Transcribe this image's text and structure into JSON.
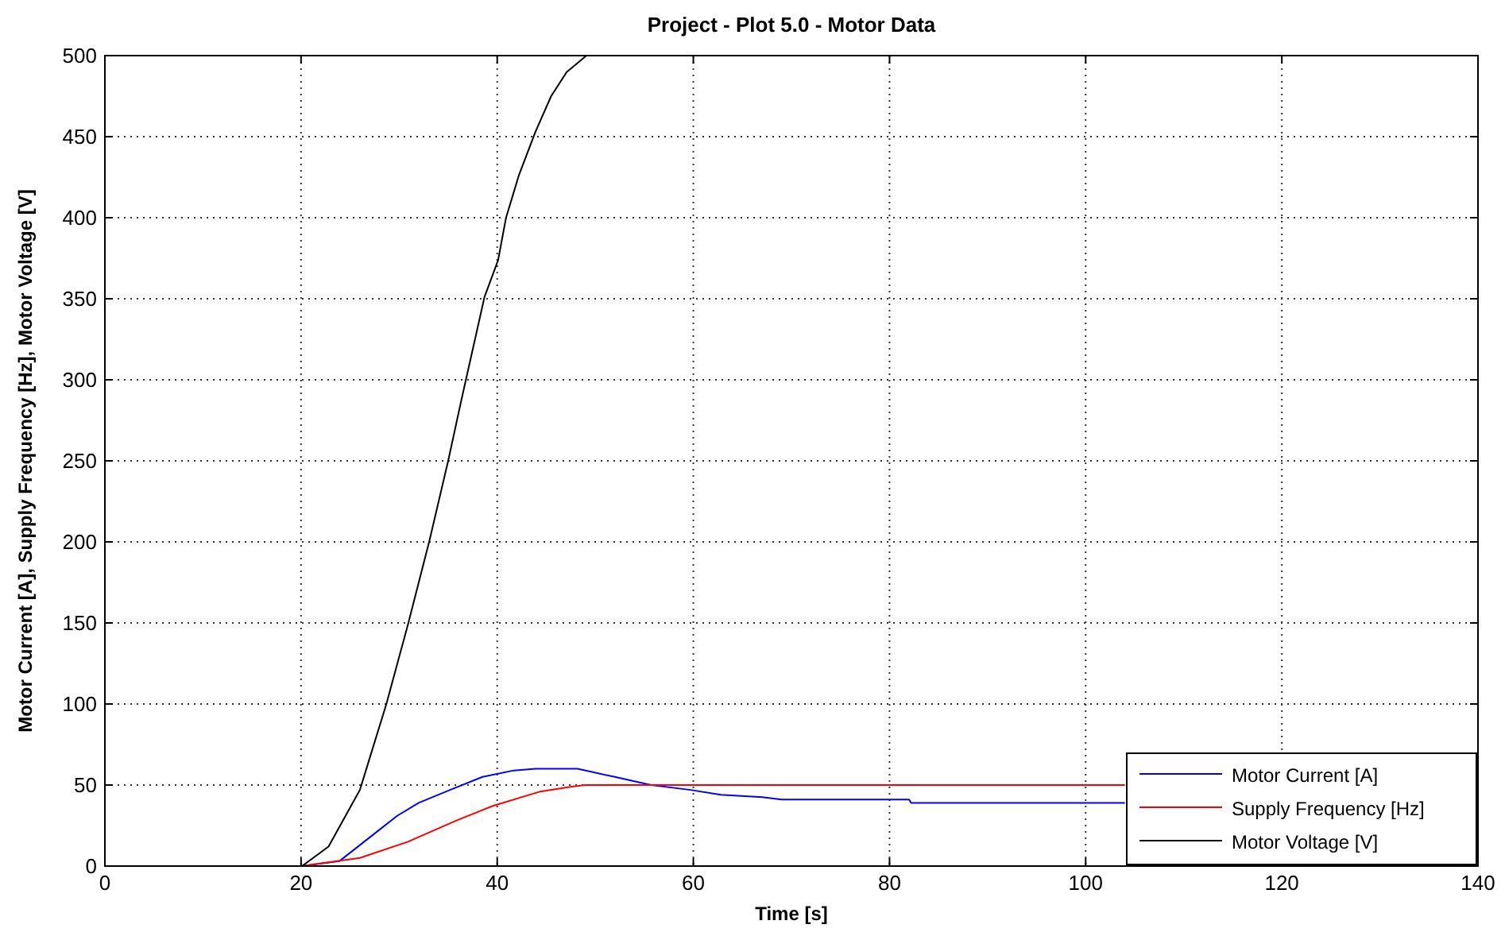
{
  "chart_data": {
    "type": "line",
    "title": "Project - Plot 5.0 - Motor Data",
    "xlabel": "Time [s]",
    "ylabel": "Motor Current [A], Supply Frequency [Hz], Motor Voltage [V]",
    "xlim": [
      0,
      140
    ],
    "xticks": [
      0,
      20,
      40,
      60,
      80,
      100,
      120,
      140
    ],
    "ylim": [
      0,
      500
    ],
    "yticks": [
      0,
      50,
      100,
      150,
      200,
      250,
      300,
      350,
      400,
      450,
      500
    ],
    "grid": true,
    "legend": "bottom right",
    "line_style": "solid",
    "series": [
      {
        "name": "Motor Current [A]",
        "color": "#0000ff",
        "x": [
          0,
          20.1,
          23.9,
          27.7,
          29.8,
          32,
          35.2,
          38.5,
          41.7,
          43.9,
          48.2,
          52,
          55.7,
          59.7,
          62.8,
          67,
          69,
          82,
          82.2,
          104
        ],
        "values": [
          0,
          0,
          3,
          21,
          31,
          39,
          47,
          55,
          59,
          60,
          60,
          55,
          50,
          47,
          44,
          42.5,
          41,
          41,
          39,
          39
        ]
      },
      {
        "name": "Supply Frequency [Hz]",
        "color": "#ff0000",
        "x": [
          0,
          20,
          26,
          30.9,
          35.8,
          39.5,
          44.4,
          47.6,
          49,
          104
        ],
        "values": [
          0,
          0,
          5,
          15,
          28,
          37,
          46,
          49,
          50,
          50
        ]
      },
      {
        "name": "Motor Voltage [V]",
        "color": "#000000",
        "x": [
          0,
          20.1,
          22.8,
          26,
          28.7,
          30.9,
          33.1,
          35,
          36.4,
          38.7,
          40.1,
          40.9,
          42.2,
          43.9,
          45.5,
          47.1,
          49.1
        ],
        "values": [
          0,
          0,
          12,
          47,
          100,
          149,
          201,
          250,
          289,
          351,
          374,
          400,
          426,
          453,
          475,
          490,
          500
        ]
      }
    ]
  }
}
